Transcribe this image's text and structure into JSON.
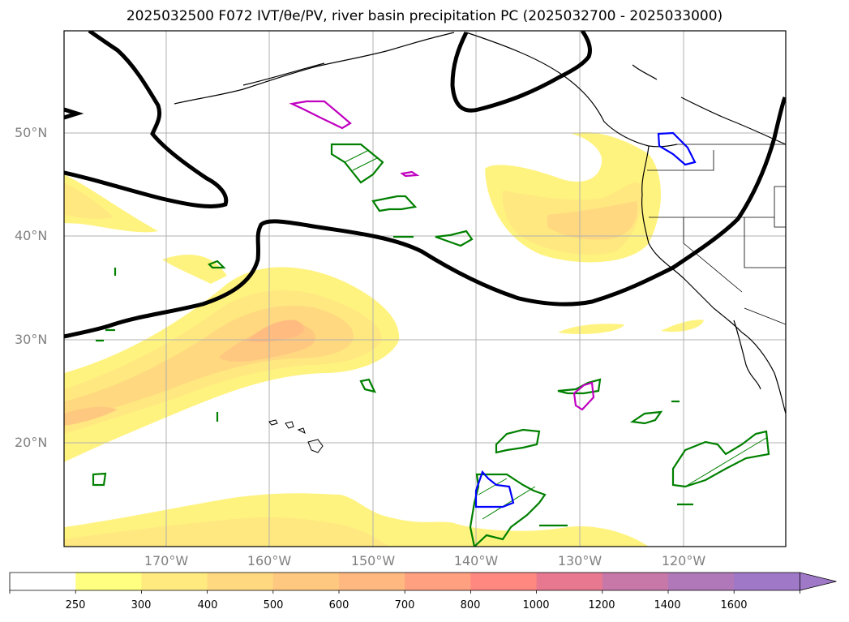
{
  "title": "2025032500 F072 IVT/θe/PV, river basin precipitation PC (2025032700 - 2025033000)",
  "lat_labels": [
    "50°N",
    "40°N",
    "30°N",
    "20°N"
  ],
  "lon_labels": [
    "170°W",
    "160°W",
    "150°W",
    "140°W",
    "130°W",
    "120°W"
  ],
  "colorbar": {
    "ticks": [
      "250",
      "300",
      "400",
      "500",
      "600",
      "700",
      "800",
      "1000",
      "1200",
      "1400",
      "1600"
    ],
    "colors": [
      "#ffffff",
      "#ffff80",
      "#ffea80",
      "#ffd880",
      "#ffc880",
      "#ffb880",
      "#ffa080",
      "#ff8880",
      "#e87890",
      "#c878a8",
      "#b078b8",
      "#a078c8"
    ],
    "extend": "max"
  },
  "colors": {
    "ivt_light": "#fff380",
    "ivt_mid": "#ffdb80",
    "ivt_dark": "#ffbb80",
    "theta_contour": "#000000",
    "green_contour": "#008000",
    "magenta_contour": "#c000c0",
    "blue_contour": "#0000ff"
  }
}
